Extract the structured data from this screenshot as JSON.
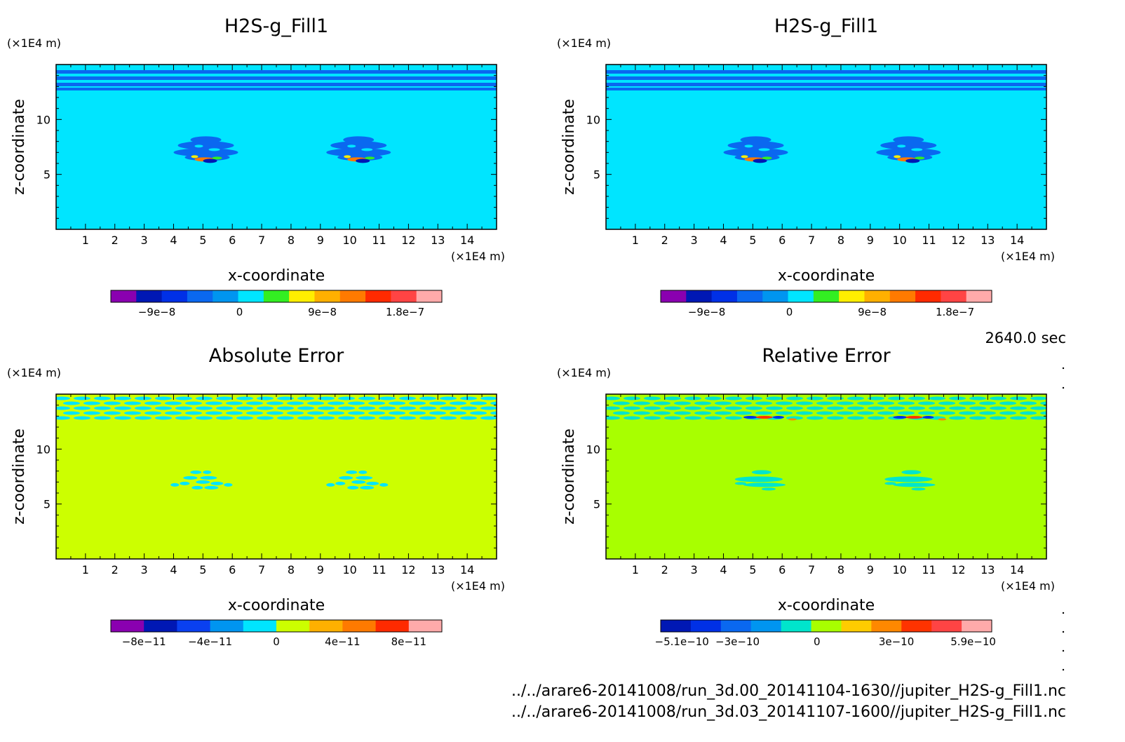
{
  "time_label": "2640.0 sec",
  "files": [
    "../../arare6-20141008/run_3d.00_20141104-1630//jupiter_H2S-g_Fill1.nc",
    "../../arare6-20141008/run_3d.03_20141107-1600//jupiter_H2S-g_Fill1.nc"
  ],
  "chart_data": [
    {
      "type": "heatmap",
      "title": "H2S-g_Fill1",
      "xlabel": "x-coordinate",
      "ylabel": "z-coordinate",
      "x_unit": "(×1E4 m)",
      "y_unit": "(×1E4 m)",
      "xlim": [
        0,
        15
      ],
      "ylim": [
        0,
        15
      ],
      "x_ticks": [
        1,
        2,
        3,
        4,
        5,
        6,
        7,
        8,
        9,
        10,
        11,
        12,
        13,
        14
      ],
      "y_ticks": [
        5,
        10
      ],
      "background": "#00e5ff",
      "pattern": "field",
      "colorbar": {
        "colors": [
          "#8a00b0",
          "#0018b4",
          "#0030e6",
          "#0a68f0",
          "#0095f0",
          "#00e5ff",
          "#33ee22",
          "#ffee00",
          "#ffb000",
          "#ff7a00",
          "#ff2a00",
          "#ff4444",
          "#ffaaaa"
        ],
        "tick_labels": [
          "−9e−8",
          "0",
          "9e−8",
          "1.8e−7"
        ],
        "tick_values": [
          -9e-08,
          0,
          9e-08,
          1.8e-07
        ],
        "range": [
          -1.4e-07,
          2.2e-07
        ]
      }
    },
    {
      "type": "heatmap",
      "title": "H2S-g_Fill1",
      "xlabel": "x-coordinate",
      "ylabel": "z-coordinate",
      "x_unit": "(×1E4 m)",
      "y_unit": "(×1E4 m)",
      "xlim": [
        0,
        15
      ],
      "ylim": [
        0,
        15
      ],
      "x_ticks": [
        1,
        2,
        3,
        4,
        5,
        6,
        7,
        8,
        9,
        10,
        11,
        12,
        13,
        14
      ],
      "y_ticks": [
        5,
        10
      ],
      "background": "#00e5ff",
      "pattern": "field",
      "colorbar": {
        "colors": [
          "#8a00b0",
          "#0018b4",
          "#0030e6",
          "#0a68f0",
          "#0095f0",
          "#00e5ff",
          "#33ee22",
          "#ffee00",
          "#ffb000",
          "#ff7a00",
          "#ff2a00",
          "#ff4444",
          "#ffaaaa"
        ],
        "tick_labels": [
          "−9e−8",
          "0",
          "9e−8",
          "1.8e−7"
        ],
        "tick_values": [
          -9e-08,
          0,
          9e-08,
          1.8e-07
        ],
        "range": [
          -1.4e-07,
          2.2e-07
        ]
      }
    },
    {
      "type": "heatmap",
      "title": "Absolute Error",
      "xlabel": "x-coordinate",
      "ylabel": "z-coordinate",
      "x_unit": "(×1E4 m)",
      "y_unit": "(×1E4 m)",
      "xlim": [
        0,
        15
      ],
      "ylim": [
        0,
        15
      ],
      "x_ticks": [
        1,
        2,
        3,
        4,
        5,
        6,
        7,
        8,
        9,
        10,
        11,
        12,
        13,
        14
      ],
      "y_ticks": [
        5,
        10
      ],
      "background": "#ccff00",
      "pattern": "abs",
      "colorbar": {
        "colors": [
          "#8a00b0",
          "#0018b4",
          "#0a40f0",
          "#0095f0",
          "#00e5ff",
          "#ccff00",
          "#ffb000",
          "#ff7a00",
          "#ff2a00",
          "#ffaaaa"
        ],
        "tick_labels": [
          "−8e−11",
          "−4e−11",
          "0",
          "4e−11",
          "8e−11"
        ],
        "tick_values": [
          -8e-11,
          -4e-11,
          0,
          4e-11,
          8e-11
        ],
        "range": [
          -1e-10,
          1e-10
        ]
      }
    },
    {
      "type": "heatmap",
      "title": "Relative Error",
      "xlabel": "x-coordinate",
      "ylabel": "z-coordinate",
      "x_unit": "(×1E4 m)",
      "y_unit": "(×1E4 m)",
      "xlim": [
        0,
        15
      ],
      "ylim": [
        0,
        15
      ],
      "x_ticks": [
        1,
        2,
        3,
        4,
        5,
        6,
        7,
        8,
        9,
        10,
        11,
        12,
        13,
        14
      ],
      "y_ticks": [
        5,
        10
      ],
      "background": "#a8ff00",
      "pattern": "rel",
      "colorbar": {
        "colors": [
          "#0018b4",
          "#0030e6",
          "#0a68f0",
          "#0095f0",
          "#00e5cc",
          "#a8ff00",
          "#ffcc00",
          "#ff8800",
          "#ff3300",
          "#ff4444",
          "#ffaaaa"
        ],
        "tick_labels": [
          "−5.1e−10",
          "−3e−10",
          "0",
          "3e−10",
          "5.9e−10"
        ],
        "tick_values": [
          -5.1e-10,
          -3e-10,
          0,
          3e-10,
          5.9e-10
        ],
        "range": [
          -5.9e-10,
          6.6e-10
        ]
      }
    }
  ]
}
